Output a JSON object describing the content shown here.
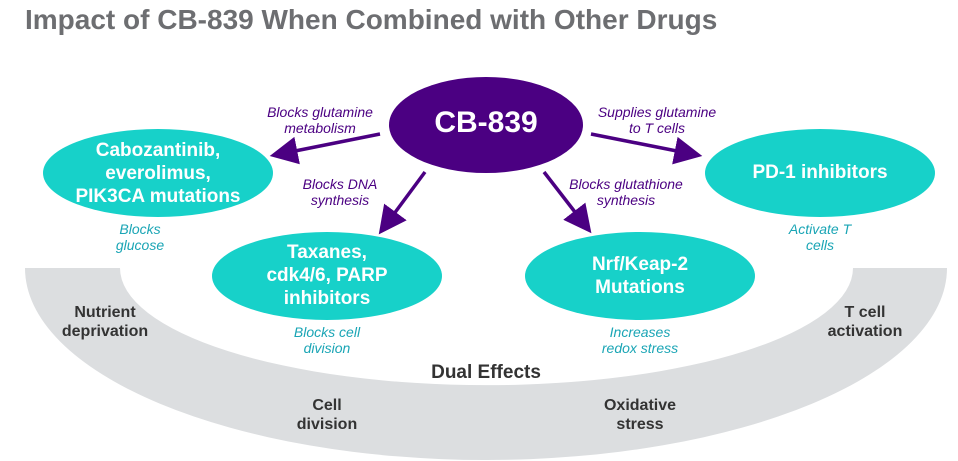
{
  "title": "Impact of CB-839 When Combined with Other Drugs",
  "center_node": "CB-839",
  "nodes": {
    "cabozantinib": [
      "Cabozantinib,",
      "everolimus,",
      "PIK3CA mutations"
    ],
    "taxanes": [
      "Taxanes,",
      "cdk4/6, PARP",
      "inhibitors"
    ],
    "nrf": [
      "Nrf/Keap-2",
      "Mutations"
    ],
    "pd1": [
      "PD-1 inhibitors"
    ]
  },
  "arrow_labels": {
    "glutamine_metabolism": [
      "Blocks glutamine",
      "metabolism"
    ],
    "dna_synthesis": [
      "Blocks DNA",
      "synthesis"
    ],
    "supplies_glutamine": [
      "Supplies glutamine",
      "to T cells"
    ],
    "glutathione": [
      "Blocks glutathione",
      "synthesis"
    ]
  },
  "effects": {
    "blocks_glucose": [
      "Blocks",
      "glucose"
    ],
    "blocks_cell_division": [
      "Blocks cell",
      "division"
    ],
    "redox_stress": [
      "Increases",
      "redox stress"
    ],
    "activate_t_cells": [
      "Activate T",
      "cells"
    ]
  },
  "dual_effects": {
    "title": "Dual Effects",
    "nutrient": [
      "Nutrient",
      "deprivation"
    ],
    "cell_division": [
      "Cell",
      "division"
    ],
    "oxidative": [
      "Oxidative",
      "stress"
    ],
    "t_cell": [
      "T cell",
      "activation"
    ]
  },
  "colors": {
    "purple": "#4b0082",
    "teal": "#17d1c9",
    "gray_band": "#dcdee0",
    "title": "#6d6e71"
  }
}
